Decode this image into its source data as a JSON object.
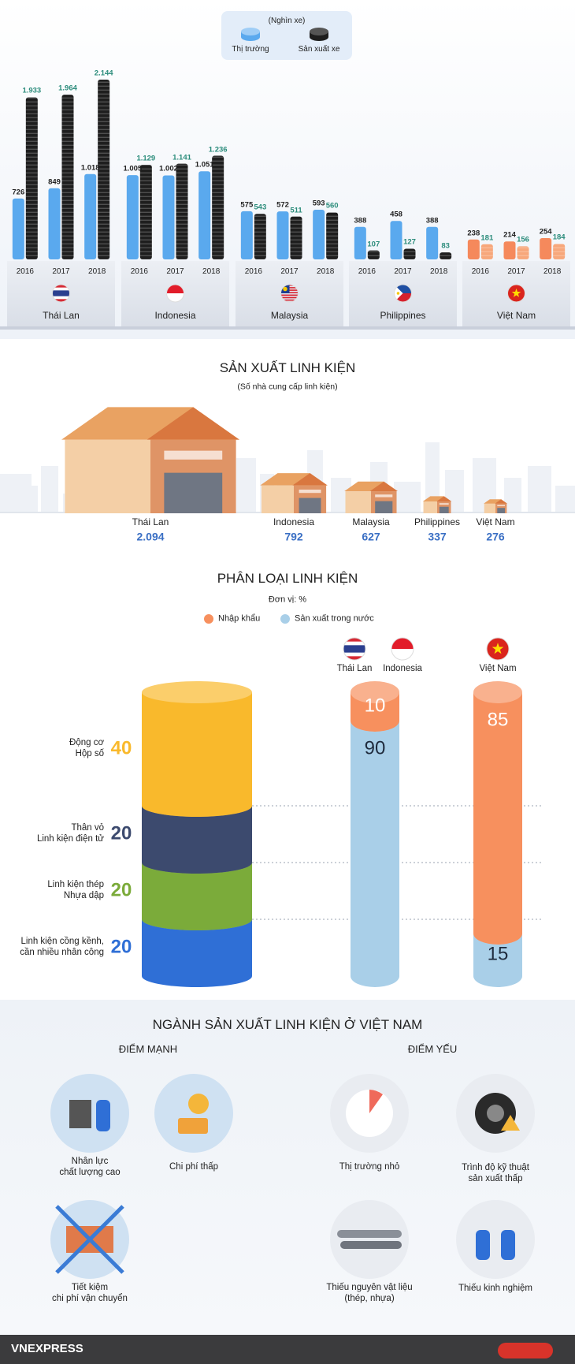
{
  "chart_data": [
    {
      "type": "grouped-bar",
      "unit": "(Nghìn xe)",
      "legend": [
        {
          "name": "Thị trường",
          "color": "#5aa9ee"
        },
        {
          "name": "Sản xuất xe",
          "color": "#1e1e1e"
        }
      ],
      "groups": [
        {
          "name": "Thái Lan",
          "categories": [
            "2016",
            "2017",
            "2018"
          ],
          "series": [
            {
              "color": "#5aa9ee",
              "values": [
                726,
                849,
                1018
              ],
              "value_labels": [
                "726",
                "849",
                "1.018"
              ]
            },
            {
              "color": "#1e1e1e",
              "values": [
                1933,
                1964,
                2144
              ],
              "value_labels": [
                "1.933",
                "1.964",
                "2.144"
              ]
            }
          ]
        },
        {
          "name": "Indonesia",
          "categories": [
            "2016",
            "2017",
            "2018"
          ],
          "series": [
            {
              "color": "#5aa9ee",
              "values": [
                1005,
                1002,
                1051
              ],
              "value_labels": [
                "1.005",
                "1.002",
                "1.051"
              ]
            },
            {
              "color": "#1e1e1e",
              "values": [
                1129,
                1141,
                1236
              ],
              "value_labels": [
                "1.129",
                "1.141",
                "1.236"
              ]
            }
          ]
        },
        {
          "name": "Malaysia",
          "categories": [
            "2016",
            "2017",
            "2018"
          ],
          "series": [
            {
              "color": "#5aa9ee",
              "values": [
                575,
                572,
                593
              ],
              "value_labels": [
                "575",
                "572",
                "593"
              ]
            },
            {
              "color": "#1e1e1e",
              "values": [
                543,
                511,
                560
              ],
              "value_labels": [
                "543",
                "511",
                "560"
              ]
            }
          ]
        },
        {
          "name": "Philippines",
          "categories": [
            "2016",
            "2017",
            "2018"
          ],
          "series": [
            {
              "color": "#5aa9ee",
              "values": [
                388,
                458,
                388
              ],
              "value_labels": [
                "388",
                "458",
                "388"
              ]
            },
            {
              "color": "#1e1e1e",
              "values": [
                107,
                127,
                83
              ],
              "value_labels": [
                "107",
                "127",
                "83"
              ]
            }
          ]
        },
        {
          "name": "Việt Nam",
          "categories": [
            "2016",
            "2017",
            "2018"
          ],
          "series": [
            {
              "color": "#f5895c",
              "values": [
                238,
                214,
                254
              ],
              "value_labels": [
                "238",
                "214",
                "254"
              ]
            },
            {
              "color": "#f7a77b",
              "values": [
                181,
                156,
                184
              ],
              "value_labels": [
                "181",
                "156",
                "184"
              ]
            }
          ]
        }
      ]
    },
    {
      "type": "pictorial-bar",
      "title": "SẢN XUẤT LINH KIỆN",
      "subtitle": "(Số nhà cung cấp linh kiện)",
      "categories": [
        "Thái Lan",
        "Indonesia",
        "Malaysia",
        "Philippines",
        "Việt Nam"
      ],
      "values": [
        2094,
        792,
        627,
        337,
        276
      ],
      "value_labels": [
        "2.094",
        "792",
        "627",
        "337",
        "276"
      ],
      "color": "#3a6fc4"
    },
    {
      "type": "stacked-cylinder",
      "title": "PHÂN LOẠI LINH KIỆN",
      "subtitle": "Đơn vị: %",
      "components": {
        "categories": [
          "Động cơ\nHộp số",
          "Thân vỏ\nLinh kiện điện tử",
          "Linh kiện thép\nNhựa dập",
          "Linh kiện cồng kềnh,\ncần nhiều nhân công"
        ],
        "values": [
          40,
          20,
          20,
          20
        ],
        "colors": [
          "#f9b92c",
          "#3c4a6e",
          "#7bab3a",
          "#2f6fd6"
        ]
      },
      "bar_labels": [
        [
          "Thái Lan",
          "Indonesia"
        ],
        [
          "Việt Nam"
        ]
      ],
      "series": [
        {
          "name": "Nhập khẩu",
          "color": "#f7905e",
          "values": [
            10,
            85
          ]
        },
        {
          "name": "Sản xuất trong nước",
          "color": "#a9cfe8",
          "values": [
            90,
            15
          ]
        }
      ]
    }
  ],
  "vietnam_section": {
    "title": "NGÀNH SẢN XUẤT LINH KIỆN Ở VIỆT NAM",
    "strengths": {
      "heading": "ĐIỂM MẠNH",
      "items": [
        "Nhân lực\nchất lượng cao",
        "Chi phí thấp",
        "Tiết kiệm\nchi phí vận chuyển"
      ]
    },
    "weaknesses": {
      "heading": "ĐIỂM YẾU",
      "items": [
        "Thị trường nhỏ",
        "Trình độ kỹ thuật\nsản xuất thấp",
        "Thiếu nguyên vật liệu\n(thép, nhựa)",
        "Thiếu kinh nghiệm"
      ]
    }
  },
  "footer": {
    "brand": "VNEXPRESS"
  }
}
